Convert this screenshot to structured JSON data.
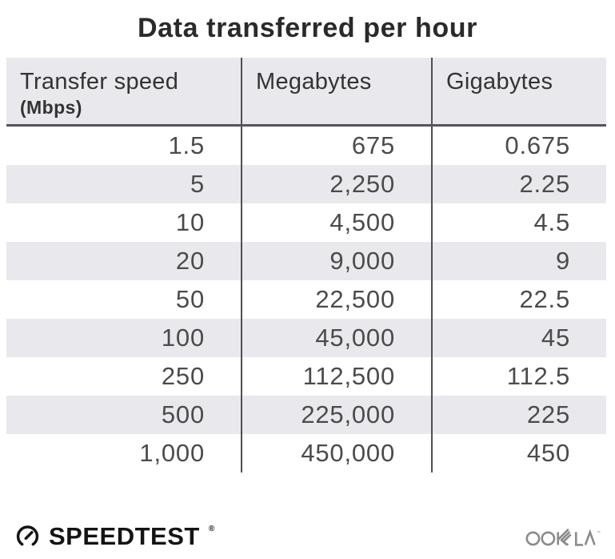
{
  "title": "Data transferred per hour",
  "chart_data": {
    "type": "table",
    "title": "Data transferred per hour",
    "columns": [
      {
        "label": "Transfer speed",
        "sublabel": "(Mbps)"
      },
      {
        "label": "Megabytes",
        "sublabel": ""
      },
      {
        "label": "Gigabytes",
        "sublabel": ""
      }
    ],
    "rows": [
      [
        "1.5",
        "675",
        "0.675"
      ],
      [
        "5",
        "2,250",
        "2.25"
      ],
      [
        "10",
        "4,500",
        "4.5"
      ],
      [
        "20",
        "9,000",
        "9"
      ],
      [
        "50",
        "22,500",
        "22.5"
      ],
      [
        "100",
        "45,000",
        "45"
      ],
      [
        "250",
        "112,500",
        "112.5"
      ],
      [
        "500",
        "225,000",
        "225"
      ],
      [
        "1,000",
        "450,000",
        "450"
      ]
    ],
    "layout": {
      "row_stripe": "alternating (white / light gray)",
      "grid": "vertical dividers between columns, dark rule under header"
    }
  },
  "footer": {
    "brand": "SPEEDTEST",
    "brand_mark": "®",
    "brand_icon": "speedtest-gauge-icon",
    "company": "OOKLA",
    "company_mark": "™"
  },
  "colors": {
    "background": "#ffffff",
    "stripe": "#e9e9ed",
    "header_bg": "#e9e9ed",
    "header_rule": "#55555b",
    "column_divider": "#4f4f54",
    "title_text": "#2a2a2a",
    "cell_text": "#4b4b4b",
    "brand_text": "#141414",
    "ookla_gray": "#8b8b8b"
  }
}
